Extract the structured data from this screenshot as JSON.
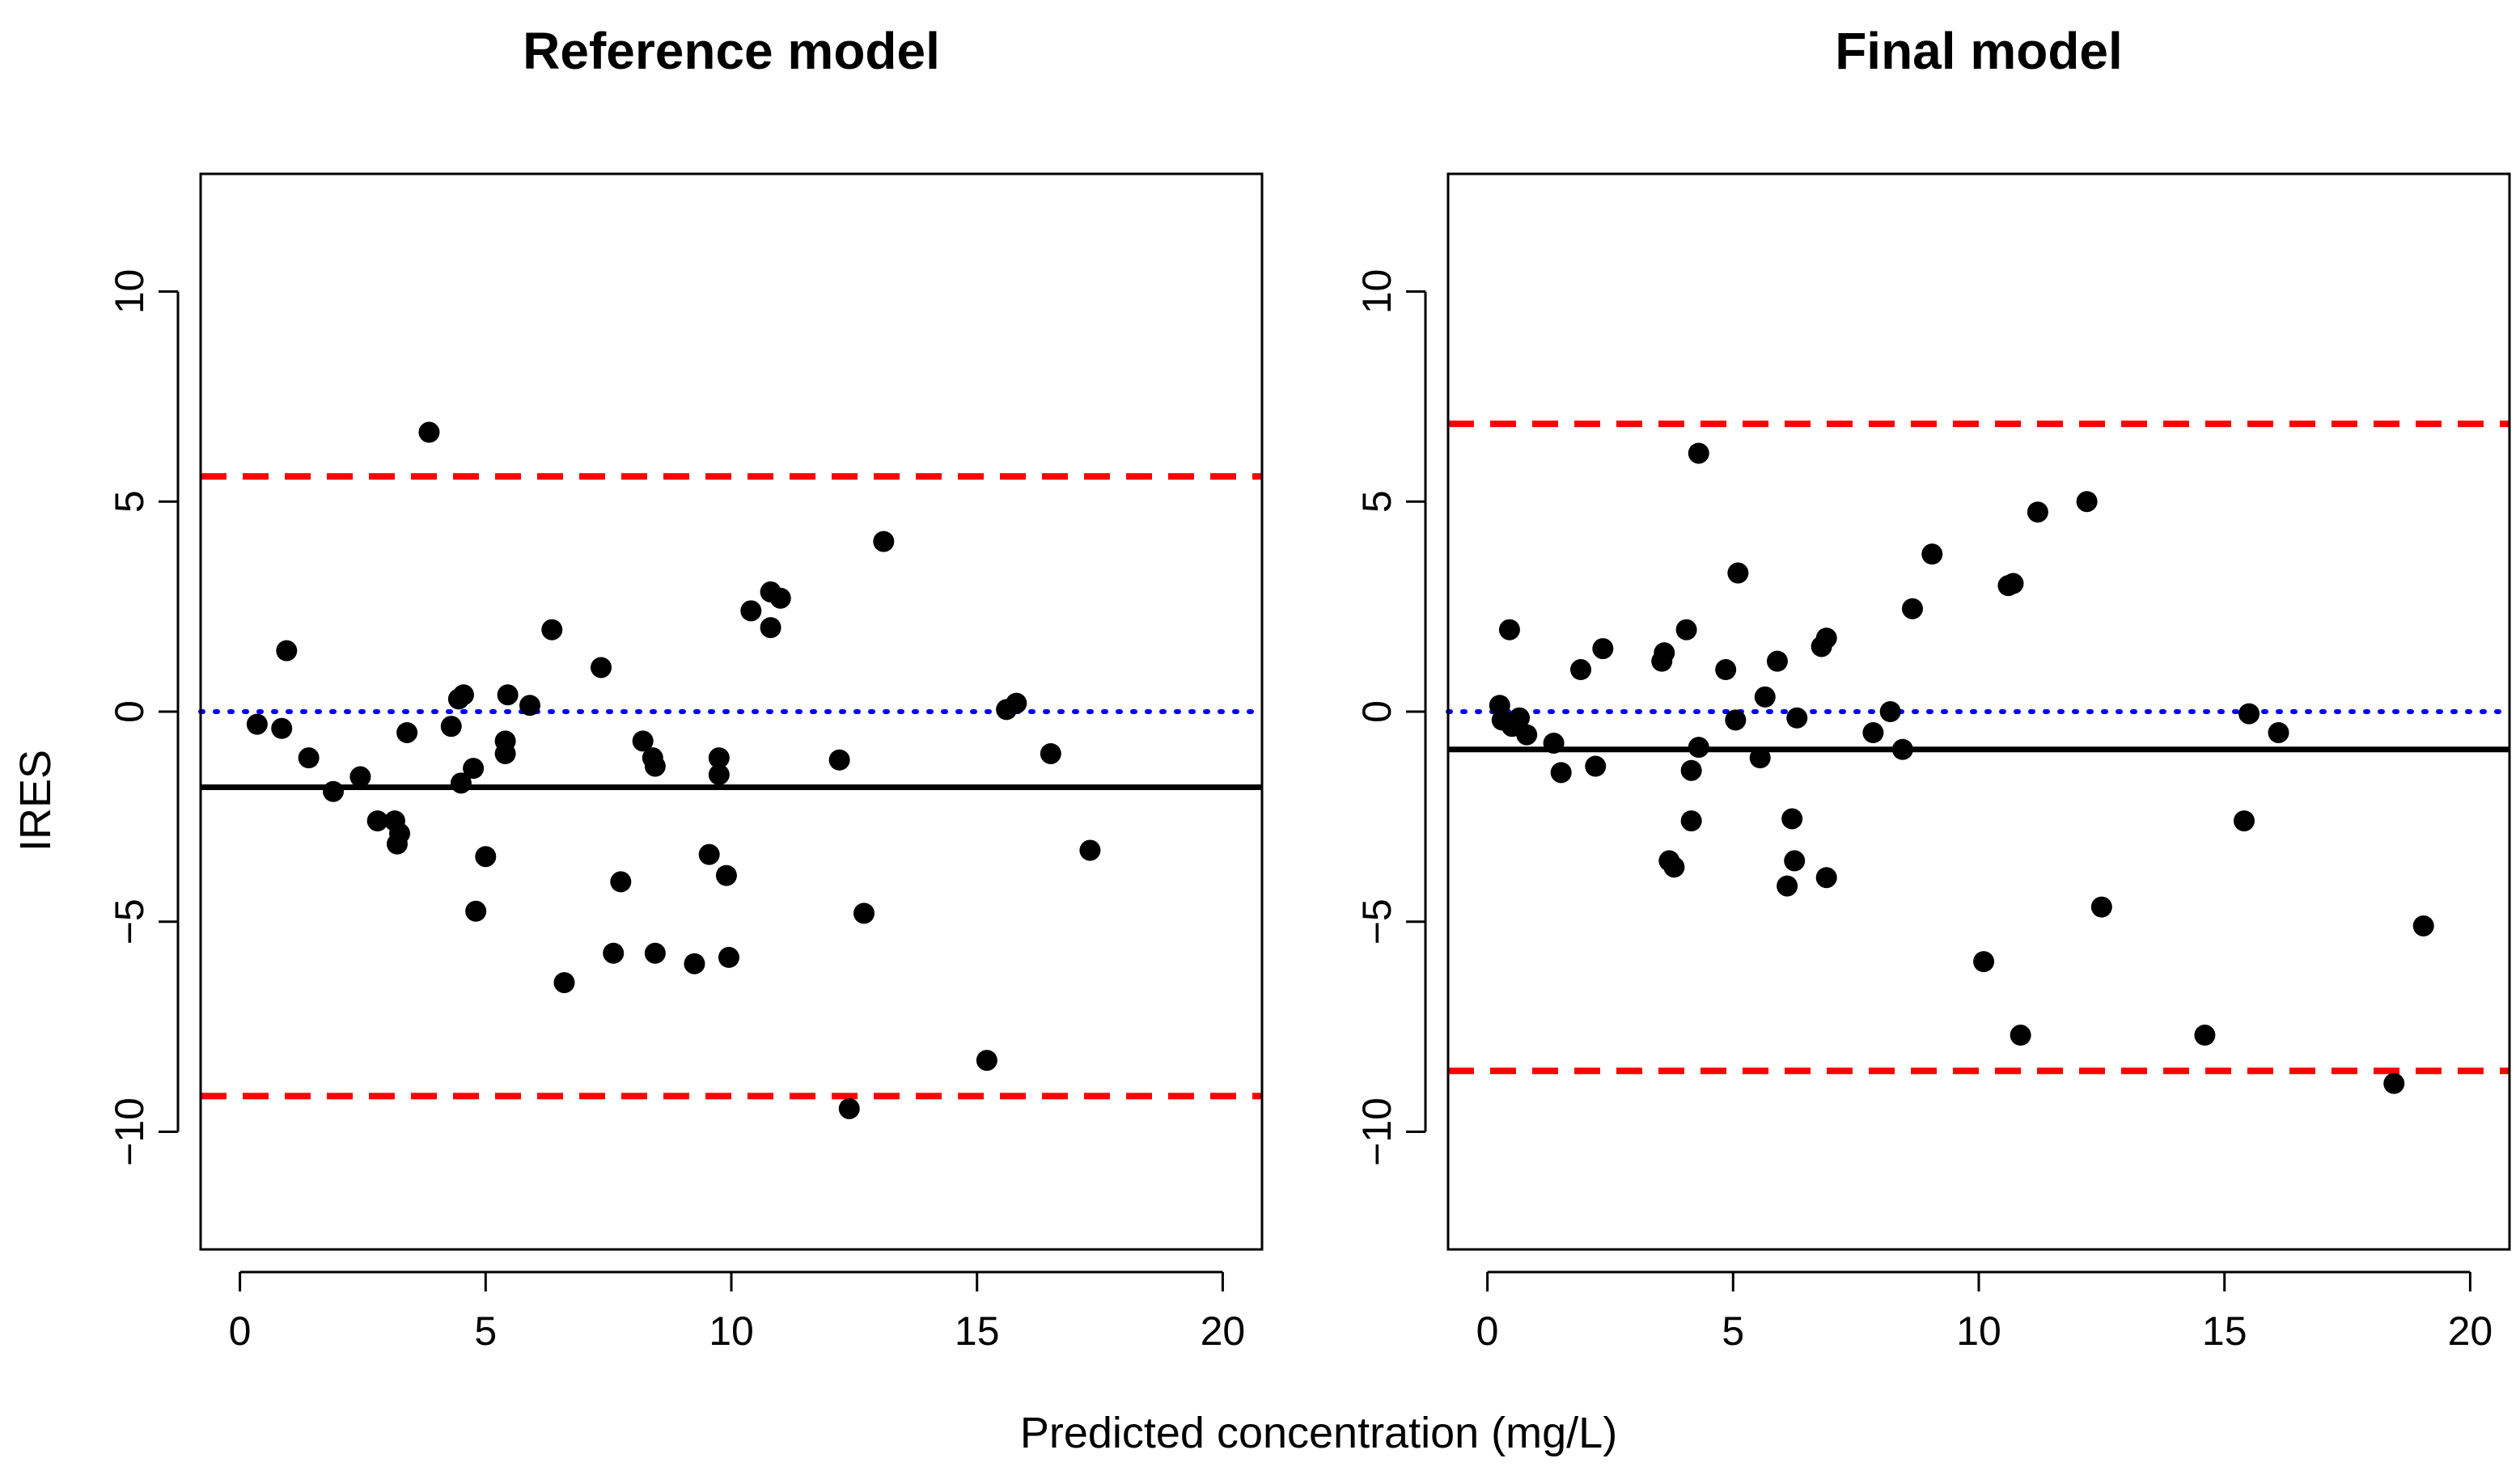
{
  "shared_xlabel": "Predicted concentration (mg/L)",
  "shared_ylabel": "IRES",
  "colors": {
    "points": "#000000",
    "mean_line": "#000000",
    "limit_lines": "#ff0000",
    "zero_line": "#0000ff"
  },
  "chart_data": [
    {
      "type": "scatter",
      "title": "Reference model",
      "xlabel": "Predicted concentration (mg/L)",
      "ylabel": "IRES",
      "xlim": [
        -0.8,
        20.8
      ],
      "ylim": [
        -12.8,
        12.8
      ],
      "xticks": [
        0,
        5,
        10,
        15,
        20
      ],
      "yticks": [
        -10,
        -5,
        0,
        5,
        10
      ],
      "hlines": {
        "upper_limit": 5.6,
        "mean": -1.8,
        "zero": 0,
        "lower_limit": -9.15
      },
      "points": [
        {
          "x": 0.35,
          "y": -0.3
        },
        {
          "x": 0.85,
          "y": -0.4
        },
        {
          "x": 0.95,
          "y": 1.45
        },
        {
          "x": 1.4,
          "y": -1.1
        },
        {
          "x": 1.9,
          "y": -1.9
        },
        {
          "x": 2.45,
          "y": -1.55
        },
        {
          "x": 2.8,
          "y": -2.6
        },
        {
          "x": 3.15,
          "y": -2.6
        },
        {
          "x": 3.2,
          "y": -3.15
        },
        {
          "x": 3.25,
          "y": -2.9
        },
        {
          "x": 3.4,
          "y": -0.5
        },
        {
          "x": 3.85,
          "y": 6.65
        },
        {
          "x": 4.3,
          "y": -0.35
        },
        {
          "x": 4.45,
          "y": 0.3
        },
        {
          "x": 4.55,
          "y": 0.4
        },
        {
          "x": 4.5,
          "y": -1.7
        },
        {
          "x": 4.75,
          "y": -1.35
        },
        {
          "x": 4.8,
          "y": -4.75
        },
        {
          "x": 5.0,
          "y": -3.45
        },
        {
          "x": 5.4,
          "y": -0.7
        },
        {
          "x": 5.4,
          "y": -1.0
        },
        {
          "x": 5.45,
          "y": 0.4
        },
        {
          "x": 5.9,
          "y": 0.15
        },
        {
          "x": 6.35,
          "y": 1.95
        },
        {
          "x": 6.6,
          "y": -6.45
        },
        {
          "x": 7.35,
          "y": 1.05
        },
        {
          "x": 7.6,
          "y": -5.75
        },
        {
          "x": 7.75,
          "y": -4.05
        },
        {
          "x": 8.2,
          "y": -0.7
        },
        {
          "x": 8.4,
          "y": -1.1
        },
        {
          "x": 8.45,
          "y": -1.3
        },
        {
          "x": 8.45,
          "y": -5.75
        },
        {
          "x": 9.25,
          "y": -6.0
        },
        {
          "x": 9.55,
          "y": -3.4
        },
        {
          "x": 9.75,
          "y": -1.1
        },
        {
          "x": 9.75,
          "y": -1.5
        },
        {
          "x": 9.9,
          "y": -3.9
        },
        {
          "x": 9.95,
          "y": -5.85
        },
        {
          "x": 10.4,
          "y": 2.4
        },
        {
          "x": 10.8,
          "y": 2.85
        },
        {
          "x": 10.8,
          "y": 2.0
        },
        {
          "x": 11.0,
          "y": 2.7
        },
        {
          "x": 12.2,
          "y": -1.15
        },
        {
          "x": 12.4,
          "y": -9.45
        },
        {
          "x": 12.7,
          "y": -4.8
        },
        {
          "x": 13.1,
          "y": 4.05
        },
        {
          "x": 15.2,
          "y": -8.3
        },
        {
          "x": 15.6,
          "y": 0.05
        },
        {
          "x": 15.8,
          "y": 0.2
        },
        {
          "x": 16.5,
          "y": -1.0
        },
        {
          "x": 17.3,
          "y": -3.3
        }
      ]
    },
    {
      "type": "scatter",
      "title": "Final model",
      "xlabel": "Predicted concentration (mg/L)",
      "ylabel": "",
      "xlim": [
        -0.8,
        20.8
      ],
      "ylim": [
        -12.8,
        12.8
      ],
      "xticks": [
        0,
        5,
        10,
        15,
        20
      ],
      "yticks": [
        -10,
        -5,
        0,
        5,
        10
      ],
      "hlines": {
        "upper_limit": 6.85,
        "mean": -0.9,
        "zero": 0,
        "lower_limit": -8.55
      },
      "points": [
        {
          "x": 0.25,
          "y": 0.15
        },
        {
          "x": 0.3,
          "y": -0.2
        },
        {
          "x": 0.45,
          "y": 1.95
        },
        {
          "x": 0.5,
          "y": -0.35
        },
        {
          "x": 0.65,
          "y": -0.15
        },
        {
          "x": 0.8,
          "y": -0.55
        },
        {
          "x": 1.35,
          "y": -0.75
        },
        {
          "x": 1.5,
          "y": -1.45
        },
        {
          "x": 1.9,
          "y": 1.0
        },
        {
          "x": 2.2,
          "y": -1.3
        },
        {
          "x": 2.35,
          "y": 1.5
        },
        {
          "x": 3.55,
          "y": 1.2
        },
        {
          "x": 3.6,
          "y": 1.4
        },
        {
          "x": 3.7,
          "y": -3.55
        },
        {
          "x": 3.8,
          "y": -3.7
        },
        {
          "x": 4.05,
          "y": 1.95
        },
        {
          "x": 4.15,
          "y": -1.4
        },
        {
          "x": 4.15,
          "y": -2.6
        },
        {
          "x": 4.3,
          "y": 6.15
        },
        {
          "x": 4.3,
          "y": -0.85
        },
        {
          "x": 4.85,
          "y": 1.0
        },
        {
          "x": 5.05,
          "y": -0.2
        },
        {
          "x": 5.1,
          "y": 3.3
        },
        {
          "x": 5.55,
          "y": -1.1
        },
        {
          "x": 5.65,
          "y": 0.35
        },
        {
          "x": 5.9,
          "y": 1.2
        },
        {
          "x": 6.1,
          "y": -4.15
        },
        {
          "x": 6.2,
          "y": -2.55
        },
        {
          "x": 6.25,
          "y": -3.55
        },
        {
          "x": 6.3,
          "y": -0.15
        },
        {
          "x": 6.8,
          "y": 1.55
        },
        {
          "x": 6.9,
          "y": 1.75
        },
        {
          "x": 6.9,
          "y": -3.95
        },
        {
          "x": 7.85,
          "y": -0.5
        },
        {
          "x": 8.2,
          "y": 0.0
        },
        {
          "x": 8.45,
          "y": -0.9
        },
        {
          "x": 8.65,
          "y": 2.45
        },
        {
          "x": 9.05,
          "y": 3.75
        },
        {
          "x": 10.1,
          "y": -5.95
        },
        {
          "x": 10.6,
          "y": 3.0
        },
        {
          "x": 10.7,
          "y": 3.05
        },
        {
          "x": 10.85,
          "y": -7.7
        },
        {
          "x": 11.2,
          "y": 4.75
        },
        {
          "x": 12.2,
          "y": 5.0
        },
        {
          "x": 12.5,
          "y": -4.65
        },
        {
          "x": 14.6,
          "y": -7.7
        },
        {
          "x": 15.4,
          "y": -2.6
        },
        {
          "x": 15.5,
          "y": -0.05
        },
        {
          "x": 16.1,
          "y": -0.5
        },
        {
          "x": 18.45,
          "y": -8.85
        },
        {
          "x": 19.05,
          "y": -5.1
        }
      ]
    }
  ]
}
